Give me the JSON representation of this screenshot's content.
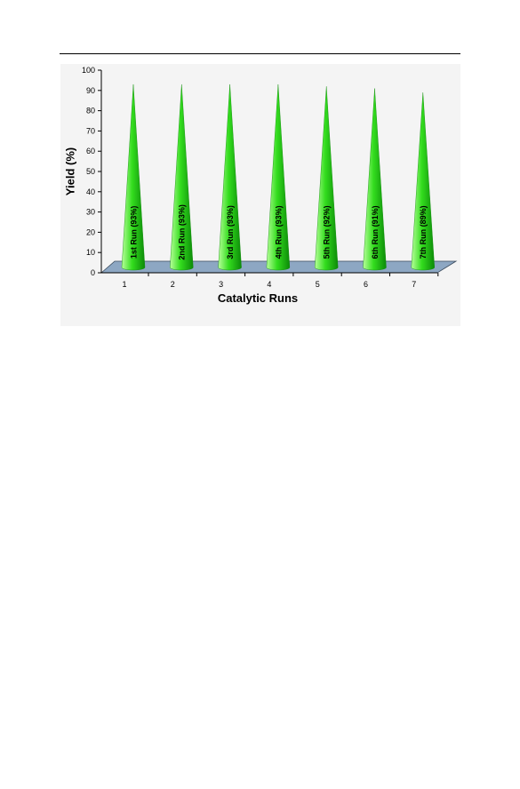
{
  "chart_data": {
    "type": "bar",
    "shape": "cone",
    "categories": [
      "1",
      "2",
      "3",
      "4",
      "5",
      "6",
      "7"
    ],
    "values": [
      93,
      93,
      93,
      93,
      92,
      91,
      89
    ],
    "data_labels": [
      "1st Run (93%)",
      "2nd Run (93%)",
      "3rd Run (93%)",
      "4th Run (93%)",
      "5th Run (92%)",
      "6th Run (91%)",
      "7th Run (89%)"
    ],
    "xlabel": "Catalytic Runs",
    "ylabel": "Yield (%)",
    "ylim": [
      0,
      100
    ],
    "yticks": [
      0,
      10,
      20,
      30,
      40,
      50,
      60,
      70,
      80,
      90,
      100
    ],
    "grid": false,
    "legend": "none",
    "colors": {
      "bar_light": "#b8ff9a",
      "bar": "#33dd1e",
      "bar_dark": "#0c8a08",
      "floor": "#8da7c3",
      "floor_edge": "#3a4a5c",
      "panel": "#f4f4f4"
    }
  }
}
